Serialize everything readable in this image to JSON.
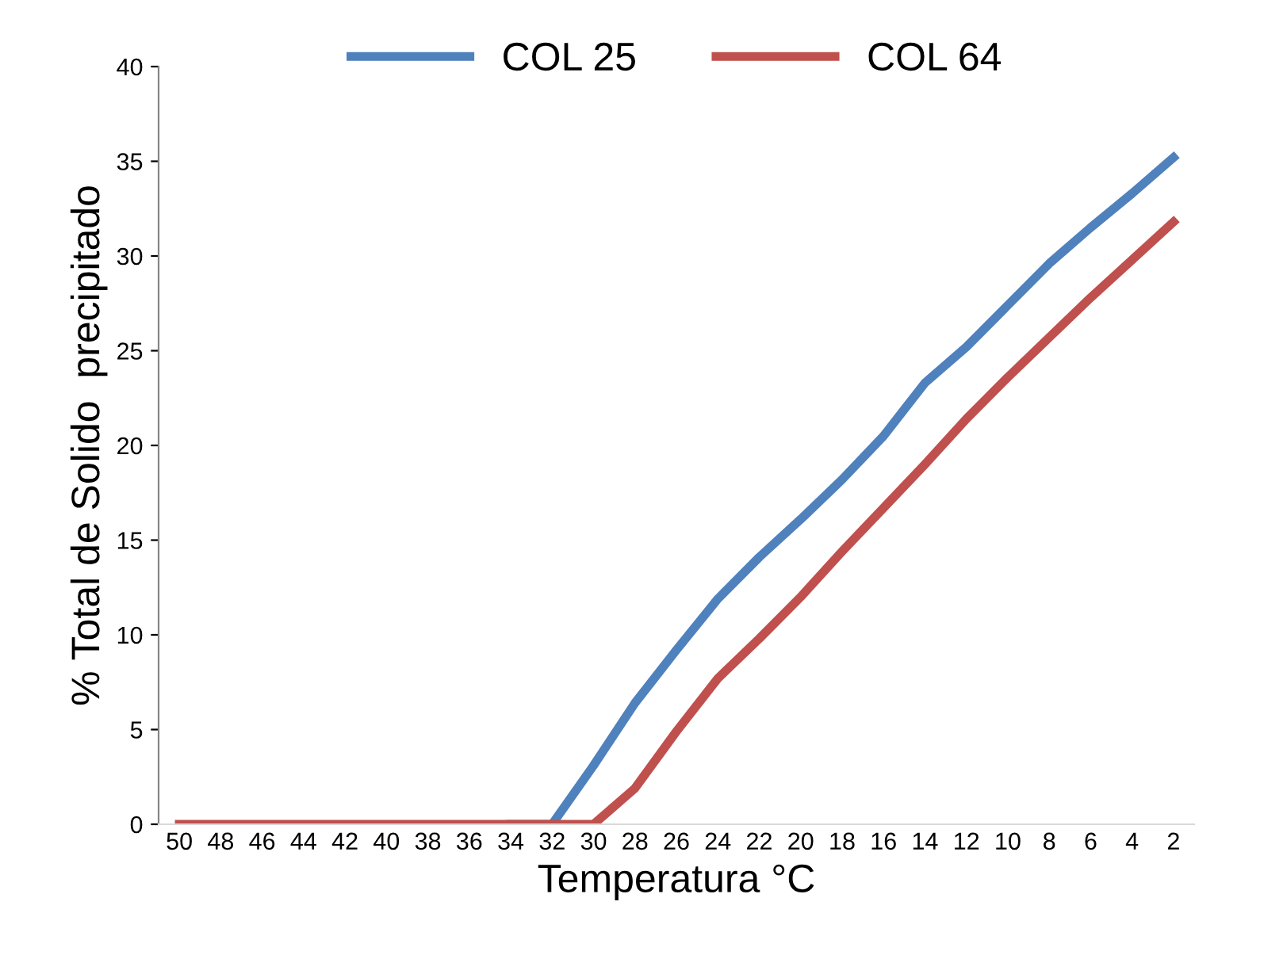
{
  "chart_data": {
    "type": "line",
    "xlabel": "Temperatura °C",
    "ylabel": "% Total de Solido  precipitado",
    "categories": [
      "50",
      "48",
      "46",
      "44",
      "42",
      "40",
      "38",
      "36",
      "34",
      "32",
      "30",
      "28",
      "26",
      "24",
      "22",
      "20",
      "18",
      "16",
      "14",
      "12",
      "10",
      "8",
      "6",
      "4",
      "2"
    ],
    "series": [
      {
        "name": "COL 25",
        "color": "#4f81bd",
        "values": [
          null,
          null,
          null,
          null,
          null,
          null,
          null,
          null,
          0,
          0,
          3.1,
          6.4,
          9.2,
          11.9,
          14.1,
          16.1,
          18.2,
          20.5,
          23.3,
          25.2,
          27.4,
          29.6,
          31.5,
          33.3,
          35.2
        ]
      },
      {
        "name": "COL 64",
        "color": "#c0504d",
        "values": [
          0,
          0,
          0,
          0,
          0,
          0,
          0,
          0,
          0,
          0,
          0,
          1.9,
          4.9,
          7.7,
          9.8,
          12.0,
          14.4,
          16.7,
          19.0,
          21.4,
          23.6,
          25.7,
          27.8,
          29.8,
          31.8
        ]
      }
    ],
    "ylim": [
      0,
      40
    ],
    "yticks": [
      0,
      5,
      10,
      15,
      20,
      25,
      30,
      35,
      40
    ],
    "grid": false,
    "legend": "top",
    "marker": "none",
    "line_style": "solid"
  }
}
